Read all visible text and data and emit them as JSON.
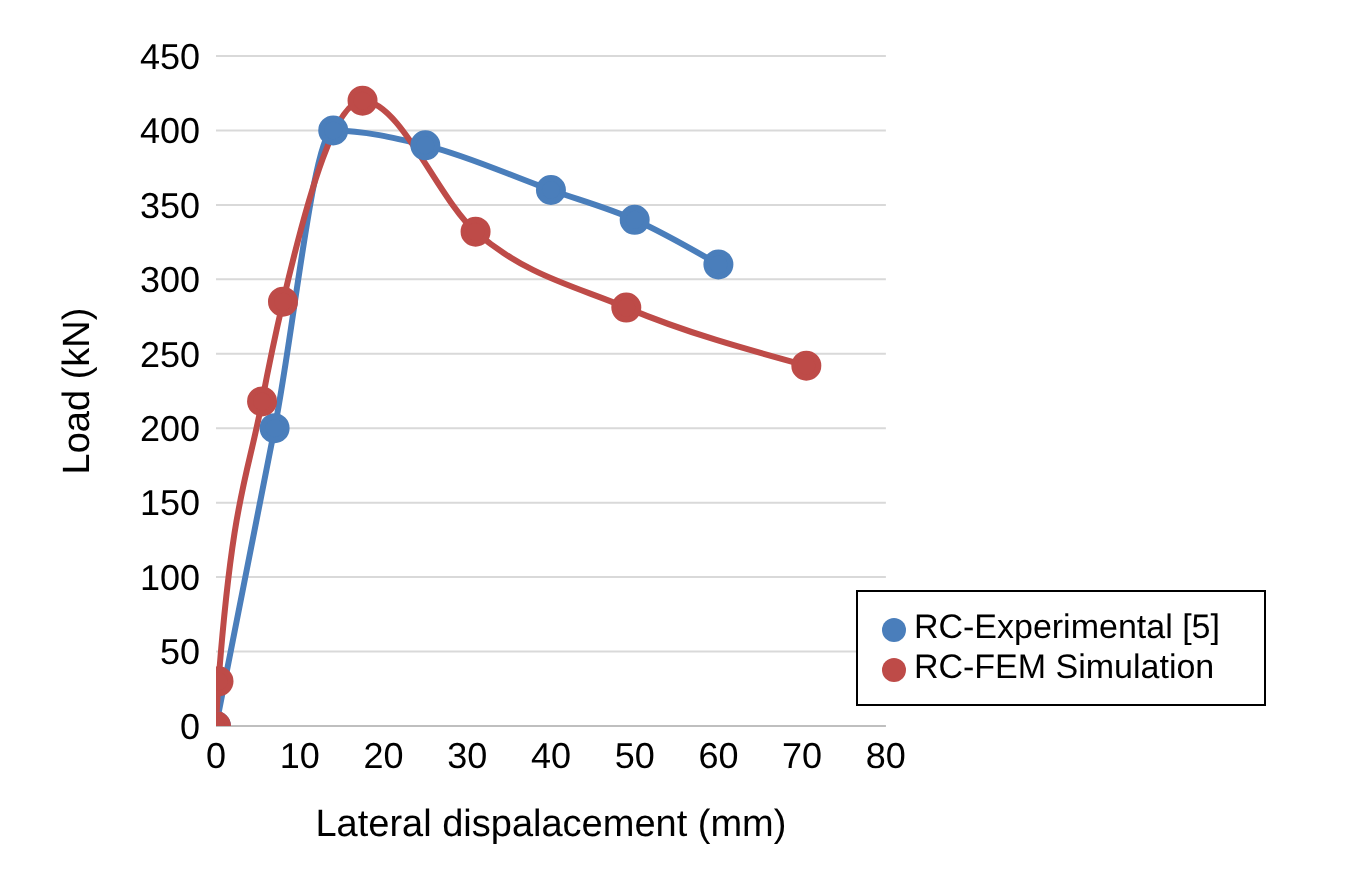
{
  "chart_data": {
    "type": "line",
    "xlabel": "Lateral dispalacement (mm)",
    "ylabel": "Load (kN)",
    "series": [
      {
        "name": "RC-Experimental [5]",
        "color": "#4a7ebb",
        "x": [
          0,
          7,
          14,
          25,
          40,
          50,
          60
        ],
        "values": [
          0,
          200,
          400,
          390,
          360,
          340,
          310
        ]
      },
      {
        "name": "RC-FEM Simulation",
        "color": "#be4b48",
        "x": [
          0,
          0.3,
          5.5,
          8,
          17.5,
          31,
          49,
          70.5
        ],
        "values": [
          0,
          30,
          218,
          285,
          420,
          332,
          281,
          242
        ]
      }
    ],
    "xlim": [
      0,
      80
    ],
    "xticks": [
      0,
      10,
      20,
      30,
      40,
      50,
      60,
      70,
      80
    ],
    "ylim": [
      0,
      450
    ],
    "yticks": [
      0,
      50,
      100,
      150,
      200,
      250,
      300,
      350,
      400,
      450
    ],
    "grid": "y",
    "legend": "bottom right",
    "marker": "circle",
    "line_style": "solid"
  }
}
